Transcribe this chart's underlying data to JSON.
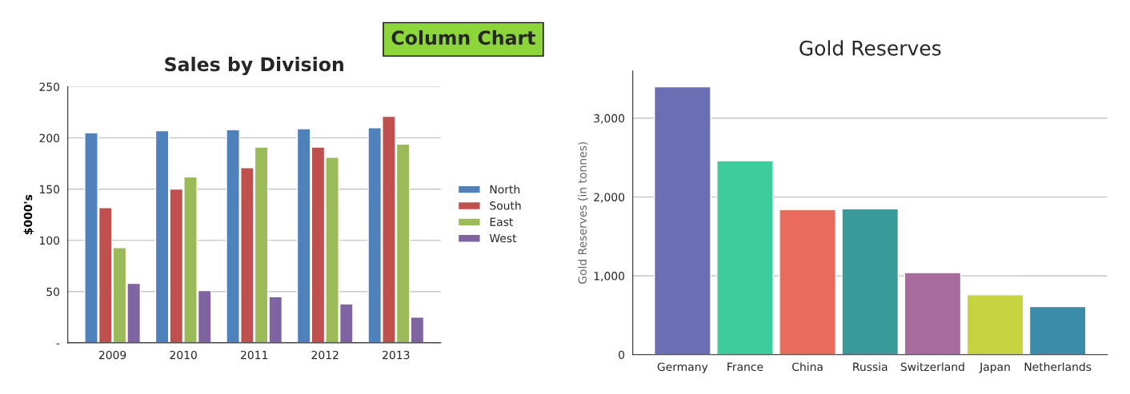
{
  "chart_data": [
    {
      "type": "bar",
      "title": "Sales by Division",
      "ylabel": "$000's",
      "categories": [
        "2009",
        "2010",
        "2011",
        "2012",
        "2013"
      ],
      "series": [
        {
          "name": "North",
          "color": "#4f81bd",
          "values": [
            205,
            207,
            208,
            209,
            210
          ]
        },
        {
          "name": "South",
          "color": "#c0504d",
          "values": [
            132,
            150,
            171,
            191,
            221
          ]
        },
        {
          "name": "East",
          "color": "#9bbb59",
          "values": [
            93,
            162,
            191,
            181,
            194
          ]
        },
        {
          "name": "West",
          "color": "#8064a2",
          "values": [
            58,
            51,
            45,
            38,
            25
          ]
        }
      ],
      "ylim": [
        0,
        250
      ],
      "yticks": [
        {
          "value": 0,
          "label": "-"
        },
        50,
        100,
        150,
        200,
        250
      ],
      "grid": "y",
      "legend": "right",
      "annotations": [
        "Column Chart"
      ]
    },
    {
      "type": "bar",
      "title": "Gold Reserves",
      "ylabel": "Gold Reserves (in tonnes)",
      "categories": [
        "Germany",
        "France",
        "China",
        "Russia",
        "Switzerland",
        "Japan",
        "Netherlands"
      ],
      "values": [
        3400,
        2460,
        1840,
        1850,
        1040,
        760,
        610
      ],
      "colors": [
        "#6a6fb3",
        "#3dcc9b",
        "#e86b5e",
        "#3a9a9a",
        "#a86b9e",
        "#c6d43f",
        "#3a8ca8"
      ],
      "ylim": [
        0,
        3600
      ],
      "yticks": [
        0,
        {
          "value": 1000,
          "label": "1,000"
        },
        {
          "value": 2000,
          "label": "2,000"
        },
        {
          "value": 3000,
          "label": "3,000"
        }
      ],
      "grid": "y"
    }
  ]
}
